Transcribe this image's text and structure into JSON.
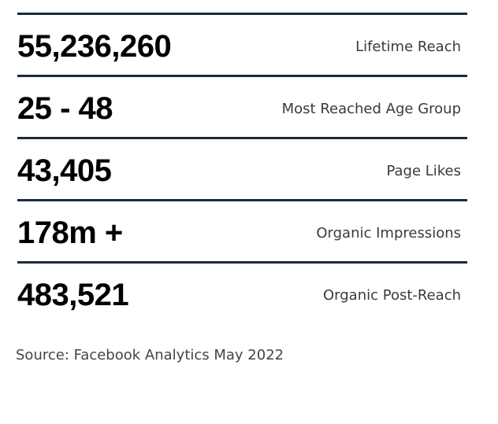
{
  "stats": [
    {
      "value": "55,236,260",
      "label": "Lifetime Reach"
    },
    {
      "value": "25 - 48",
      "label": "Most Reached Age Group"
    },
    {
      "value": "43,405",
      "label": "Page Likes"
    },
    {
      "value": "178m +",
      "label": "Organic Impressions"
    },
    {
      "value": "483,521",
      "label": "Organic Post-Reach"
    }
  ],
  "source": "Source: Facebook Analytics May 2022",
  "colors": {
    "divider": "#1c2b3a",
    "value_text": "#000000",
    "label_text": "#3a3a3a"
  }
}
